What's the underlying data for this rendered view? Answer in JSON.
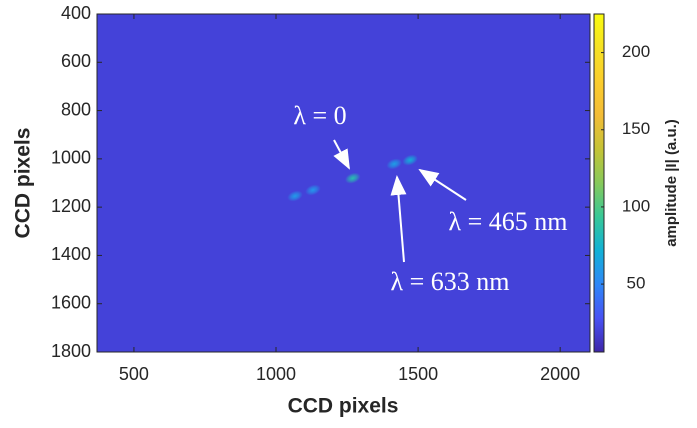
{
  "chart_data": {
    "type": "heatmap",
    "xlabel": "CCD pixels",
    "ylabel": "CCD pixels",
    "xlim": [
      370,
      2105
    ],
    "xticks": [
      500,
      1000,
      1500,
      2000
    ],
    "ylim": [
      400,
      1800
    ],
    "yticks": [
      400,
      600,
      800,
      1000,
      1200,
      1400,
      1600,
      1800
    ],
    "y_reversed": true,
    "colormap": "parula",
    "clim": [
      6,
      225
    ],
    "cticks": [
      50,
      100,
      150,
      200
    ],
    "colorbar_label": "amplitude |I| (a.u.)",
    "background_value": 20,
    "spots": {
      "x": [
        1270,
        1067,
        1130,
        1416,
        1472
      ],
      "y": [
        1080,
        1154,
        1129,
        1021,
        1005
      ],
      "values": [
        85,
        60,
        58,
        62,
        70
      ]
    },
    "annotations": [
      "λ = 0",
      "λ = 633 nm",
      "λ = 465 nm"
    ]
  }
}
